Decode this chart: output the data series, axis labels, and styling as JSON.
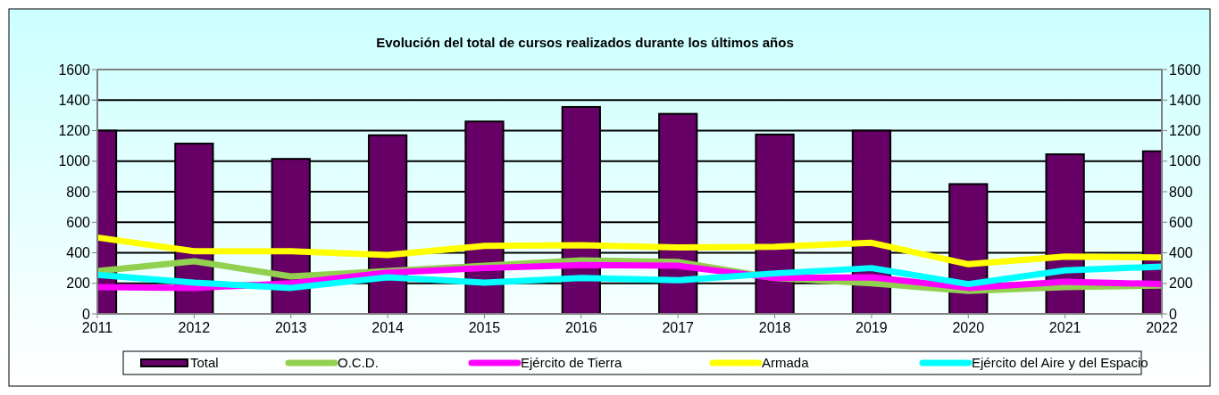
{
  "chart_data": {
    "type": "bar",
    "title": "Evolución del total de cursos realizados durante los últimos años",
    "categories": [
      "2011",
      "2012",
      "2013",
      "2014",
      "2015",
      "2016",
      "2017",
      "2018",
      "2019",
      "2020",
      "2021",
      "2022"
    ],
    "series": [
      {
        "name": "Total",
        "color": "#660066",
        "values": [
          1200,
          1115,
          1015,
          1170,
          1260,
          1355,
          1310,
          1175,
          1200,
          850,
          1045,
          1065
        ]
      },
      {
        "name": "O.C.D.",
        "type": "line",
        "color": "#92d050",
        "values": [
          280,
          345,
          245,
          280,
          315,
          350,
          340,
          235,
          200,
          150,
          175,
          185
        ]
      },
      {
        "name": "Ejército de Tierra",
        "type": "line",
        "color": "#ff00ff",
        "values": [
          175,
          170,
          200,
          270,
          300,
          320,
          315,
          235,
          240,
          170,
          210,
          195
        ]
      },
      {
        "name": "Armada",
        "type": "line",
        "color": "#ffff00",
        "values": [
          500,
          410,
          410,
          385,
          445,
          450,
          435,
          440,
          465,
          325,
          375,
          370
        ]
      },
      {
        "name": "Ejército del Aire y del Espacio",
        "type": "line",
        "color": "#00ffff",
        "values": [
          255,
          205,
          170,
          240,
          205,
          235,
          220,
          265,
          300,
          195,
          285,
          310
        ]
      }
    ],
    "ylim": [
      0,
      1600
    ],
    "yticks": [
      0,
      200,
      400,
      600,
      800,
      1000,
      1200,
      1400,
      1600
    ],
    "y2lim": [
      0,
      1600
    ],
    "y2ticks": [
      0,
      200,
      400,
      600,
      800,
      1000,
      1200,
      1400,
      1600
    ],
    "grid": "y",
    "legend": "bottom",
    "marker": "none",
    "line_style": "solid"
  }
}
